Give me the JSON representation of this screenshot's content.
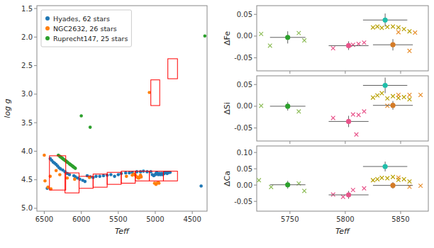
{
  "chart_data": [
    {
      "type": "scatter",
      "xlabel": "Teff",
      "ylabel": "log g",
      "xlim": [
        6600,
        4300
      ],
      "ylim": [
        5.05,
        1.45
      ],
      "xticks": [
        6500,
        6000,
        5500,
        5000,
        4500
      ],
      "yticks": [
        1.5,
        {
          "value": 2,
          "label": "2.0"
        },
        2.5,
        {
          "value": 3,
          "label": "3.0"
        },
        3.5,
        {
          "value": 4,
          "label": "4.0"
        },
        4.5,
        {
          "value": 5,
          "label": "5.0"
        }
      ],
      "legend": "upper left",
      "series": [
        {
          "name": "Hyades, 62 stars",
          "color": "#1f77b4",
          "marker": "o",
          "x": [
            6460,
            6420,
            6400,
            6380,
            6360,
            6340,
            6320,
            6300,
            6280,
            6250,
            6220,
            6190,
            6160,
            6100,
            6080,
            6050,
            6020,
            5980,
            5950,
            5920,
            5880,
            5840,
            5800,
            5750,
            5700,
            5650,
            5600,
            5550,
            5500,
            5460,
            5400,
            5350,
            5310,
            5250,
            5200,
            5160,
            5110,
            5060,
            5040,
            5020,
            5000,
            4990,
            4980,
            4970,
            4960,
            4950,
            4940,
            4930,
            4920,
            4910,
            4900,
            4890,
            4880,
            4870,
            4860,
            4850,
            4840,
            4830,
            4820,
            4810,
            4800,
            4380
          ],
          "values": [
            4.65,
            4.13,
            4.16,
            4.19,
            4.21,
            4.23,
            4.26,
            4.29,
            4.31,
            4.33,
            4.36,
            4.39,
            4.41,
            4.43,
            4.45,
            4.47,
            4.49,
            4.51,
            4.53,
            4.43,
            4.45,
            4.46,
            4.44,
            4.44,
            4.43,
            4.42,
            4.41,
            4.44,
            4.41,
            4.39,
            4.38,
            4.38,
            4.37,
            4.36,
            4.36,
            4.35,
            4.36,
            4.36,
            4.41,
            4.43,
            4.41,
            4.39,
            4.37,
            4.39,
            4.41,
            4.39,
            4.39,
            4.41,
            4.39,
            4.39,
            4.41,
            4.39,
            4.39,
            4.37,
            4.37,
            4.37,
            4.39,
            4.37,
            4.37,
            4.37,
            4.37,
            4.61
          ]
        },
        {
          "name": "NGC2632, 26 stars",
          "color": "#ff7f0e",
          "marker": "o",
          "x": [
            6500,
            6490,
            6450,
            6420,
            6410,
            6340,
            6290,
            6190,
            6090,
            5890,
            5390,
            5310,
            5290,
            5270,
            5250,
            5230,
            5220,
            5210,
            5200,
            5190,
            5080,
            5010,
            4990,
            4980,
            4960,
            4950
          ],
          "values": [
            4.07,
            4.52,
            4.63,
            4.44,
            4.66,
            4.34,
            4.41,
            4.47,
            4.49,
            4.46,
            4.44,
            4.42,
            4.4,
            4.42,
            4.45,
            4.47,
            4.47,
            4.45,
            4.42,
            4.45,
            2.97,
            4.56,
            4.58,
            4.56,
            4.55,
            4.56
          ]
        },
        {
          "name": "Ruprecht147, 25 stars",
          "color": "#2ca02c",
          "marker": "o",
          "x": [
            4330,
            5880,
            6310,
            6290,
            6280,
            6270,
            6260,
            6250,
            6240,
            6230,
            6220,
            6210,
            6200,
            6190,
            6180,
            6160,
            6150,
            6140,
            6130,
            6120,
            6110,
            6100,
            6090,
            6080,
            6000
          ],
          "values": [
            1.98,
            3.58,
            4.07,
            4.09,
            4.1,
            4.11,
            4.12,
            4.13,
            4.14,
            4.15,
            4.16,
            4.17,
            4.18,
            4.19,
            4.2,
            4.22,
            4.23,
            4.24,
            4.25,
            4.26,
            4.27,
            4.28,
            4.29,
            4.3,
            3.38
          ]
        }
      ],
      "boxes": {
        "color": "red",
        "regions": [
          {
            "xmin": 6430,
            "xmax": 6210,
            "ymin": 4.08,
            "ymax": 4.68
          },
          {
            "xmin": 6220,
            "xmax": 6030,
            "ymin": 4.38,
            "ymax": 4.73
          },
          {
            "xmin": 6030,
            "xmax": 5840,
            "ymin": 4.44,
            "ymax": 4.65
          },
          {
            "xmin": 5840,
            "xmax": 5650,
            "ymin": 4.4,
            "ymax": 4.63
          },
          {
            "xmin": 5650,
            "xmax": 5460,
            "ymin": 4.37,
            "ymax": 4.58
          },
          {
            "xmin": 5460,
            "xmax": 5270,
            "ymin": 4.35,
            "ymax": 4.56
          },
          {
            "xmin": 5270,
            "xmax": 5080,
            "ymin": 4.35,
            "ymax": 4.52
          },
          {
            "xmin": 5080,
            "xmax": 4890,
            "ymin": 4.35,
            "ymax": 4.52
          },
          {
            "xmin": 4890,
            "xmax": 4700,
            "ymin": 4.35,
            "ymax": 4.52
          },
          {
            "xmin": 5060,
            "xmax": 4940,
            "ymin": 2.75,
            "ymax": 3.2
          },
          {
            "xmin": 4830,
            "xmax": 4700,
            "ymin": 2.38,
            "ymax": 2.73
          }
        ]
      }
    },
    {
      "type": "scatter",
      "ylabel": "ΔFe",
      "xlim": [
        5720,
        5875
      ],
      "ylim": [
        -0.08,
        0.07
      ],
      "xticks": [
        5750,
        5800,
        5850
      ],
      "yticks": [
        -0.05,
        {
          "value": 0,
          "label": "0.00"
        },
        0.05
      ],
      "tick_labels": "y",
      "series": [
        {
          "marker": "x",
          "color": "#8fbe5a",
          "x": [
            5724,
            5732,
            5758,
            5763
          ],
          "values": [
            0.005,
            -0.022,
            0.007,
            -0.01
          ]
        },
        {
          "marker": "x",
          "color": "#e8538a",
          "x": [
            5789,
            5807,
            5812,
            5817
          ],
          "values": [
            -0.028,
            -0.02,
            -0.018,
            -0.015
          ]
        },
        {
          "marker": "x",
          "color": "#b8a000",
          "x": [
            5825,
            5829,
            5833,
            5838,
            5843,
            5848,
            5853,
            5858
          ],
          "values": [
            0.02,
            0.022,
            0.019,
            0.021,
            0.022,
            0.02,
            0.016,
            0.011
          ]
        },
        {
          "marker": "x",
          "color": "#e89030",
          "x": [
            5848,
            5858,
            5863
          ],
          "values": [
            0.009,
            -0.034,
            0.008
          ]
        },
        {
          "marker": "o",
          "colors": [
            "#2ca02c",
            "#e8538a",
            "#1fbeaa",
            "#d47b27"
          ],
          "x": [
            5748,
            5803,
            5836,
            5843
          ],
          "values": [
            -0.003,
            -0.022,
            0.037,
            -0.02
          ],
          "x_errors": [
            16,
            18,
            20,
            18
          ],
          "errors": [
            0.014,
            0.01,
            0.015,
            0.013
          ]
        }
      ]
    },
    {
      "type": "scatter",
      "ylabel": "ΔSi",
      "xlim": [
        5720,
        5875
      ],
      "ylim": [
        -0.08,
        0.07
      ],
      "xticks": [
        5750,
        5800,
        5850
      ],
      "yticks": [
        -0.05,
        {
          "value": 0,
          "label": "0.00"
        },
        0.05
      ],
      "tick_labels": "y",
      "series": [
        {
          "marker": "x",
          "color": "#8fbe5a",
          "x": [
            5724,
            5758
          ],
          "values": [
            0.001,
            -0.012
          ]
        },
        {
          "marker": "x",
          "color": "#e8538a",
          "x": [
            5789,
            5807,
            5812,
            5817,
            5810
          ],
          "values": [
            -0.027,
            -0.019,
            -0.02,
            -0.012,
            -0.065
          ]
        },
        {
          "marker": "x",
          "color": "#b8a000",
          "x": [
            5825,
            5829,
            5833,
            5838,
            5843,
            5848,
            5853,
            5858
          ],
          "values": [
            0.02,
            0.025,
            0.03,
            0.018,
            0.023,
            0.019,
            0.021,
            0.016
          ]
        },
        {
          "marker": "x",
          "color": "#e89030",
          "x": [
            5838,
            5848,
            5858,
            5868
          ],
          "values": [
            0.001,
            0.026,
            0.026,
            0.026
          ]
        },
        {
          "marker": "o",
          "colors": [
            "#2ca02c",
            "#e8538a",
            "#1fbeaa",
            "#d47b27"
          ],
          "x": [
            5748,
            5803,
            5836,
            5843
          ],
          "values": [
            0.0,
            -0.035,
            0.048,
            0.002
          ],
          "x_errors": [
            16,
            18,
            20,
            18
          ],
          "errors": [
            0.01,
            0.013,
            0.018,
            0.01
          ]
        }
      ]
    },
    {
      "type": "scatter",
      "ylabel": "ΔCa",
      "xlabel": "Teff",
      "xlim": [
        5720,
        5875
      ],
      "ylim": [
        -0.08,
        0.12
      ],
      "xticks": [
        5750,
        5800,
        5850
      ],
      "yticks": [
        -0.05,
        {
          "value": 0,
          "label": "0.00"
        },
        0.05,
        {
          "value": 0.1,
          "label": "0.10"
        }
      ],
      "series": [
        {
          "marker": "x",
          "color": "#8fbe5a",
          "x": [
            5722,
            5733,
            5758,
            5763
          ],
          "values": [
            0.015,
            -0.006,
            0.005,
            -0.018
          ]
        },
        {
          "marker": "x",
          "color": "#e8538a",
          "x": [
            5789,
            5798,
            5807,
            5817
          ],
          "values": [
            -0.029,
            -0.036,
            -0.015,
            -0.01
          ]
        },
        {
          "marker": "x",
          "color": "#b8a000",
          "x": [
            5825,
            5829,
            5833,
            5838,
            5843,
            5848,
            5853,
            5858
          ],
          "values": [
            0.015,
            0.018,
            0.022,
            0.021,
            0.025,
            0.016,
            0.018,
            0.011
          ]
        },
        {
          "marker": "x",
          "color": "#e89030",
          "x": [
            5848,
            5858,
            5868
          ],
          "values": [
            0.023,
            -0.005,
            -0.002
          ]
        },
        {
          "marker": "o",
          "colors": [
            "#2ca02c",
            "#e8538a",
            "#1fbeaa",
            "#d47b27"
          ],
          "x": [
            5748,
            5803,
            5836,
            5843
          ],
          "values": [
            0.001,
            -0.03,
            0.057,
            -0.001
          ],
          "x_errors": [
            16,
            18,
            20,
            18
          ],
          "errors": [
            0.012,
            0.012,
            0.015,
            0.01
          ]
        }
      ]
    }
  ]
}
